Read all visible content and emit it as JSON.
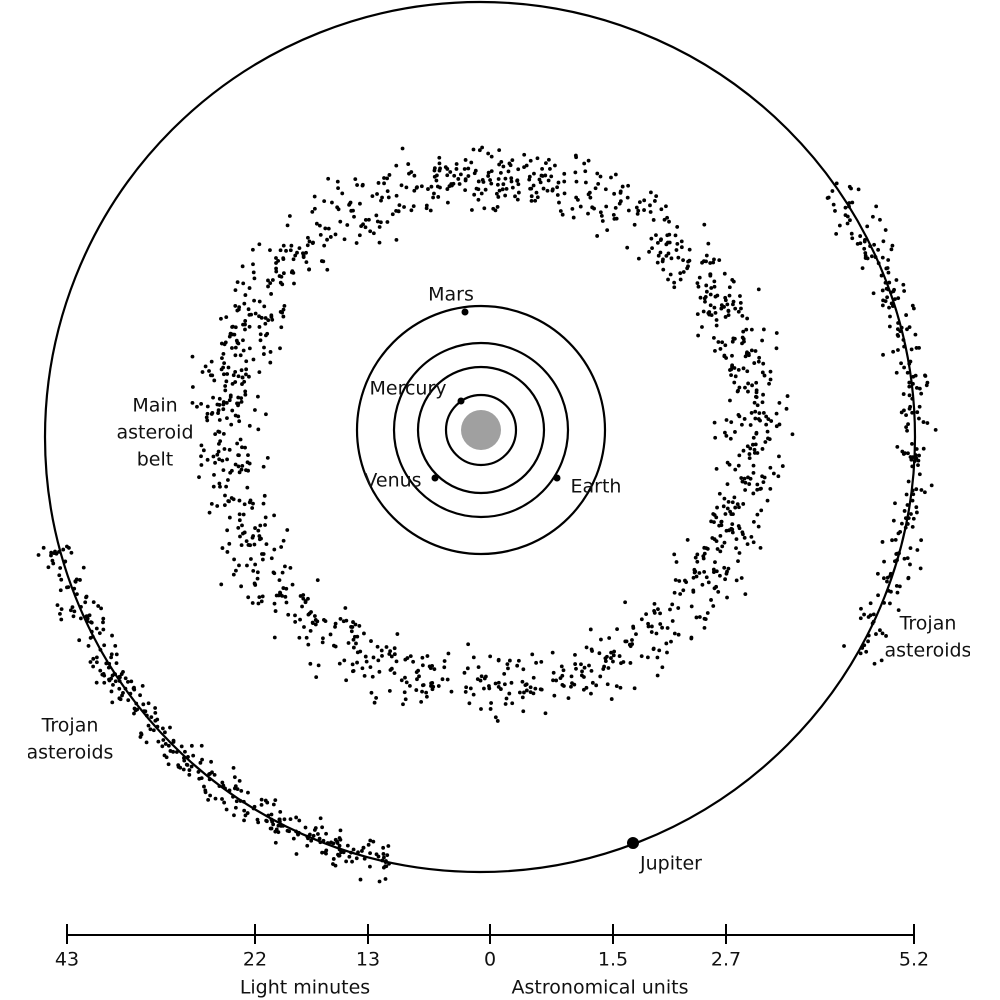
{
  "planets": [
    {
      "label": "Mercury"
    },
    {
      "label": "Venus"
    },
    {
      "label": "Earth"
    },
    {
      "label": "Mars"
    },
    {
      "label": "Jupiter"
    }
  ],
  "belt": {
    "label_lines": [
      "Main",
      "asteroid",
      "belt"
    ]
  },
  "trojans": [
    {
      "label_lines": [
        "Trojan",
        "asteroids"
      ]
    },
    {
      "label_lines": [
        "Trojan",
        "asteroids"
      ]
    }
  ],
  "scale": {
    "ticks": [
      "43",
      "22",
      "13",
      "0",
      "1.5",
      "2.7",
      "5.2"
    ],
    "left_label": "Light minutes",
    "right_label": "Astronomical units"
  }
}
